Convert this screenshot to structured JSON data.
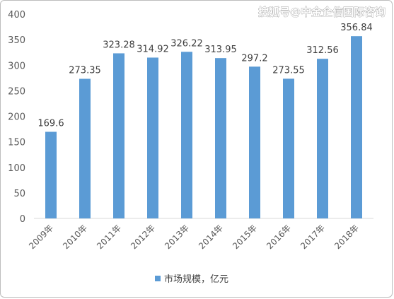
{
  "watermark": "搜狐号@中金企信国际咨询",
  "chart_data": {
    "type": "bar",
    "categories": [
      "2009年",
      "2010年",
      "2011年",
      "2012年",
      "2013年",
      "2014年",
      "2015年",
      "2016年",
      "2017年",
      "2018年"
    ],
    "series": [
      {
        "name": "市场规模，亿元",
        "values": [
          169.6,
          273.35,
          323.28,
          314.92,
          326.22,
          313.95,
          297.2,
          273.55,
          312.56,
          356.84
        ],
        "labels": [
          "169.6",
          "273.35",
          "323.28",
          "314.92",
          "326.22",
          "313.95",
          "297.2",
          "273.55",
          "312.56",
          "356.84"
        ],
        "color": "#5b9bd5"
      }
    ],
    "yticks": [
      "0",
      "50",
      "100",
      "150",
      "200",
      "250",
      "300",
      "350",
      "400"
    ],
    "ylim": [
      0,
      400
    ],
    "grid": false,
    "legend_position": "bottom"
  }
}
